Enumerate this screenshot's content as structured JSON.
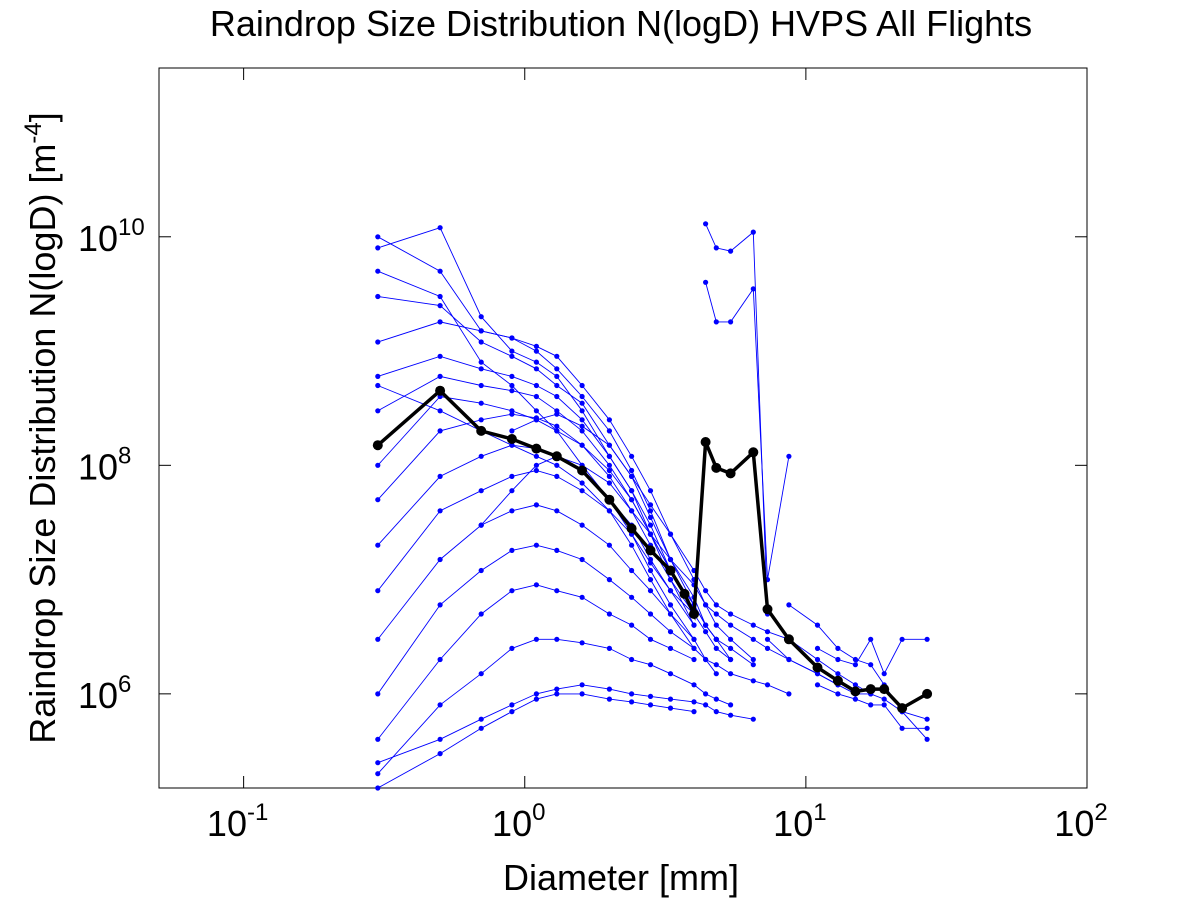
{
  "chart_data": {
    "type": "line",
    "title": "Raindrop Size Distribution N(logD) HVPS All Flights",
    "xlabel": "Diameter [mm]",
    "ylabel": "Raindrop Size Distribution N(logD) [m",
    "ylabel_exp": "-4",
    "ylabel_close": "]",
    "xscale": "log",
    "yscale": "log",
    "xlim": [
      0.05,
      100
    ],
    "ylim": [
      150000,
      300000000000
    ],
    "xticks": [
      {
        "value": 0.1,
        "base": "10",
        "exp": "-1"
      },
      {
        "value": 1,
        "base": "10",
        "exp": "0"
      },
      {
        "value": 10,
        "base": "10",
        "exp": "1"
      },
      {
        "value": 100,
        "base": "10",
        "exp": "2"
      }
    ],
    "yticks": [
      {
        "value": 1000000,
        "base": "10",
        "exp": "6"
      },
      {
        "value": 100000000,
        "base": "10",
        "exp": "8"
      },
      {
        "value": 10000000000,
        "base": "10",
        "exp": "10"
      }
    ],
    "grid": false,
    "colors": {
      "individual": "#0000ff",
      "mean": "#000000"
    },
    "mean_series": {
      "x": [
        0.3,
        0.5,
        0.7,
        0.9,
        1.1,
        1.3,
        1.6,
        2.0,
        2.4,
        2.8,
        3.3,
        3.7,
        4.0,
        4.4,
        4.8,
        5.4,
        6.5,
        7.3,
        8.7,
        11,
        13,
        15,
        17,
        19,
        22,
        27
      ],
      "y": [
        150000000,
        450000000,
        200000000,
        170000000,
        140000000,
        120000000,
        90000000,
        50000000,
        28000000,
        18000000,
        12000000,
        7500000,
        5000000,
        160000000,
        95000000,
        85000000,
        130000000,
        5500000,
        3000000,
        1700000,
        1300000,
        1050000,
        1100000,
        1100000,
        750000,
        1000000
      ]
    },
    "individual_series": [
      {
        "x": [
          0.3,
          0.5,
          0.7,
          0.9,
          1.1,
          1.3,
          1.6,
          2.0,
          2.4,
          2.8,
          3.3,
          4.0
        ],
        "y": [
          10000000000,
          5000000000,
          1500000000,
          1300000000,
          1000000000,
          700000000,
          400000000,
          200000000,
          90000000,
          40000000,
          15000000,
          6000000
        ]
      },
      {
        "x": [
          0.3,
          0.5,
          0.7,
          0.9,
          1.1,
          1.3,
          1.6,
          2.0,
          2.4,
          2.8,
          3.3,
          4.0
        ],
        "y": [
          8000000000,
          12000000000,
          2000000000,
          1000000000,
          800000000,
          600000000,
          300000000,
          120000000,
          60000000,
          25000000,
          10000000,
          4000000
        ]
      },
      {
        "x": [
          0.3,
          0.5,
          0.7,
          0.9,
          1.1,
          1.3,
          1.6,
          2.0,
          2.4,
          2.8,
          3.3,
          4.0,
          4.4,
          4.8,
          5.4
        ],
        "y": [
          3000000000,
          2500000000,
          1200000000,
          900000000,
          700000000,
          500000000,
          350000000,
          150000000,
          80000000,
          35000000,
          15000000,
          7000000,
          4000000,
          3000000,
          2000000
        ]
      },
      {
        "x": [
          0.3,
          0.5,
          0.7,
          0.9,
          1.1,
          1.3,
          1.6,
          2.0,
          2.4,
          2.8,
          3.3,
          4.0,
          4.4,
          4.8,
          5.4,
          6.5
        ],
        "y": [
          1200000000,
          1800000000,
          1500000000,
          1300000000,
          1100000000,
          900000000,
          500000000,
          250000000,
          120000000,
          60000000,
          25000000,
          10000000,
          6000000,
          4000000,
          3000000,
          2000000
        ]
      },
      {
        "x": [
          0.3,
          0.5,
          0.7,
          0.9,
          1.1,
          1.3,
          1.6,
          2.0,
          2.4,
          2.8,
          3.3,
          4.0
        ],
        "y": [
          600000000,
          900000000,
          700000000,
          600000000,
          500000000,
          400000000,
          250000000,
          120000000,
          60000000,
          30000000,
          12000000,
          5000000
        ]
      },
      {
        "x": [
          0.3,
          0.5,
          0.7,
          0.9,
          1.1,
          1.3,
          1.6,
          2.0,
          2.4,
          2.8,
          3.3,
          4.0,
          4.4,
          4.8
        ],
        "y": [
          300000000,
          600000000,
          500000000,
          450000000,
          400000000,
          300000000,
          200000000,
          100000000,
          50000000,
          25000000,
          12000000,
          6000000,
          4000000,
          3000000
        ]
      },
      {
        "x": [
          0.3,
          0.5,
          0.7,
          0.9,
          1.1,
          1.3,
          1.6,
          2.0,
          2.4,
          2.8,
          3.3,
          4.0
        ],
        "y": [
          100000000,
          400000000,
          350000000,
          300000000,
          250000000,
          200000000,
          150000000,
          80000000,
          40000000,
          20000000,
          10000000,
          5000000
        ]
      },
      {
        "x": [
          0.3,
          0.5,
          0.7,
          0.9,
          1.1,
          1.3,
          1.6,
          2.0,
          2.4,
          2.8,
          3.3,
          4.0,
          4.4,
          4.8,
          5.4,
          6.5
        ],
        "y": [
          50000000,
          200000000,
          250000000,
          280000000,
          260000000,
          220000000,
          150000000,
          90000000,
          50000000,
          25000000,
          12000000,
          6000000,
          4000000,
          3000000,
          2500000,
          1800000
        ]
      },
      {
        "x": [
          0.3,
          0.5,
          0.7,
          0.9,
          1.1,
          1.3,
          1.6,
          2.0,
          2.4,
          2.8,
          3.3,
          4.0
        ],
        "y": [
          20000000,
          80000000,
          120000000,
          150000000,
          140000000,
          120000000,
          90000000,
          50000000,
          30000000,
          15000000,
          8000000,
          4000000
        ]
      },
      {
        "x": [
          0.3,
          0.5,
          0.7,
          0.9,
          1.1,
          1.3,
          1.6,
          2.0,
          2.4,
          2.8,
          3.3,
          4.0,
          4.4,
          4.8,
          5.4
        ],
        "y": [
          8000000,
          40000000,
          60000000,
          80000000,
          90000000,
          80000000,
          60000000,
          40000000,
          25000000,
          14000000,
          8000000,
          5000000,
          3500000,
          2500000,
          2000000
        ]
      },
      {
        "x": [
          0.3,
          0.5,
          0.7,
          0.9,
          1.1,
          1.3,
          1.6,
          2.0,
          2.4,
          2.8,
          3.3,
          4.0
        ],
        "y": [
          3000000,
          15000000,
          30000000,
          40000000,
          45000000,
          40000000,
          30000000,
          20000000,
          12000000,
          8000000,
          5000000,
          3000000
        ]
      },
      {
        "x": [
          0.3,
          0.5,
          0.7,
          0.9,
          1.1,
          1.3,
          1.6,
          2.0,
          2.4,
          2.8,
          3.3,
          4.0,
          4.4,
          4.8,
          5.4,
          6.5,
          7.3,
          8.7
        ],
        "y": [
          1000000,
          6000000,
          12000000,
          18000000,
          20000000,
          18000000,
          15000000,
          10000000,
          7000000,
          5000000,
          3500000,
          2500000,
          2000000,
          1800000,
          1500000,
          1300000,
          1200000,
          1000000
        ]
      },
      {
        "x": [
          0.3,
          0.5,
          0.7,
          0.9,
          1.1,
          1.3,
          1.6,
          2.0,
          2.4,
          2.8,
          3.3,
          4.0
        ],
        "y": [
          400000,
          2000000,
          5000000,
          8000000,
          9000000,
          8000000,
          7000000,
          5000000,
          4000000,
          3000000,
          2500000,
          2000000
        ]
      },
      {
        "x": [
          0.3,
          0.5,
          0.7,
          0.9,
          1.1,
          1.3,
          1.6,
          2.0,
          2.4,
          2.8,
          3.3,
          4.0,
          4.4,
          4.8,
          5.4
        ],
        "y": [
          200000,
          800000,
          1500000,
          2500000,
          3000000,
          3000000,
          2800000,
          2500000,
          2000000,
          1800000,
          1500000,
          1200000,
          1000000,
          900000,
          800000
        ]
      },
      {
        "x": [
          0.3,
          0.5,
          0.7,
          0.9,
          1.1,
          1.3,
          1.6,
          2.0,
          2.4,
          2.8,
          3.3,
          4.0
        ],
        "y": [
          150000,
          300000,
          500000,
          700000,
          900000,
          1000000,
          1000000,
          900000,
          850000,
          800000,
          750000,
          700000
        ]
      },
      {
        "x": [
          0.3,
          0.5,
          0.7,
          0.9,
          1.1,
          1.3,
          1.6,
          2.0,
          2.4,
          2.8,
          3.3,
          4.0,
          4.4,
          4.8,
          5.4,
          6.5
        ],
        "y": [
          250000,
          400000,
          600000,
          800000,
          1000000,
          1100000,
          1200000,
          1100000,
          1000000,
          950000,
          900000,
          850000,
          800000,
          700000,
          650000,
          600000
        ]
      },
      {
        "x": [
          0.3,
          0.5,
          0.7,
          0.9,
          1.1,
          1.3,
          1.6,
          2.0,
          2.4,
          2.8,
          3.3,
          4.0
        ],
        "y": [
          500000000,
          300000000,
          200000000,
          150000000,
          120000000,
          100000000,
          70000000,
          40000000,
          20000000,
          10000000,
          5000000,
          2500000
        ]
      },
      {
        "x": [
          0.3,
          0.5,
          0.7,
          0.9,
          1.1,
          1.3,
          1.6,
          2.0,
          2.4,
          2.8,
          3.3,
          4.0,
          4.4,
          4.8
        ],
        "y": [
          5000000000,
          3000000000,
          800000000,
          500000000,
          300000000,
          200000000,
          100000000,
          50000000,
          25000000,
          12000000,
          6000000,
          3000000,
          2000000,
          1500000
        ]
      },
      {
        "x": [
          0.7,
          0.9,
          1.1,
          1.3,
          1.6,
          2.0,
          2.4,
          2.8,
          3.3,
          4.0,
          4.4,
          4.8,
          5.4,
          6.5,
          7.3,
          8.7,
          11,
          13
        ],
        "y": [
          30000000,
          60000000,
          100000000,
          120000000,
          100000000,
          70000000,
          40000000,
          25000000,
          15000000,
          9000000,
          6000000,
          5000000,
          4000000,
          3000000,
          2500000,
          2000000,
          1500000,
          1200000
        ]
      },
      {
        "x": [
          0.9,
          1.1,
          1.3,
          1.6,
          2.0,
          2.4,
          2.8,
          3.3,
          4.0,
          4.4,
          4.8,
          5.4,
          6.5,
          7.3,
          8.7,
          11,
          13,
          15,
          17
        ],
        "y": [
          200000000,
          250000000,
          280000000,
          220000000,
          150000000,
          80000000,
          45000000,
          25000000,
          12000000,
          8000000,
          6000000,
          5000000,
          4000000,
          3500000,
          3000000,
          2000000,
          1500000,
          1200000,
          1000000
        ]
      },
      {
        "x": [
          4.4,
          4.8,
          5.4,
          6.5,
          7.3
        ],
        "y": [
          13000000000,
          8000000000,
          7500000000,
          11000000000,
          5000000
        ]
      },
      {
        "x": [
          4.4,
          4.8,
          5.4,
          6.5,
          7.3,
          8.7
        ],
        "y": [
          4000000000,
          1800000000,
          1800000000,
          3500000000,
          10000000,
          120000000
        ]
      },
      {
        "x": [
          7.3,
          8.7,
          11,
          13,
          15,
          17,
          19,
          22,
          27
        ],
        "y": [
          3000000,
          2000000,
          1500000,
          1200000,
          1000000,
          1000000,
          900000,
          700000,
          600000
        ]
      },
      {
        "x": [
          11,
          13,
          15,
          17,
          19,
          22,
          27
        ],
        "y": [
          2500000,
          2000000,
          1800000,
          3000000,
          1500000,
          3000000,
          3000000
        ]
      },
      {
        "x": [
          8.7,
          11,
          13,
          15,
          17,
          19,
          22,
          27
        ],
        "y": [
          6000000,
          4000000,
          2500000,
          2000000,
          1800000,
          1200000,
          700000,
          400000
        ]
      },
      {
        "x": [
          11,
          13,
          15,
          17,
          19,
          22,
          27
        ],
        "y": [
          1200000,
          1000000,
          900000,
          800000,
          800000,
          500000,
          500000
        ]
      }
    ]
  }
}
